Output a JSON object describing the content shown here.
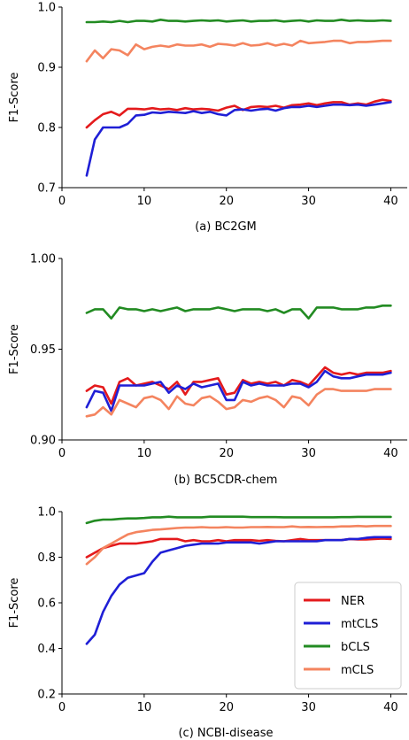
{
  "colors": {
    "NER": "#e41a1c",
    "mtCLS": "#1f1fd6",
    "bCLS": "#228b22",
    "mCLS": "#f4845f"
  },
  "legend": {
    "placement": "lower-right of panel (c)",
    "entries": [
      "NER",
      "mtCLS",
      "bCLS",
      "mCLS"
    ]
  },
  "chart_data": [
    {
      "type": "line",
      "title": "(a) BC2GM",
      "xlabel": "",
      "ylabel": "F1-Score",
      "xlim": [
        0,
        42
      ],
      "ylim": [
        0.7,
        1.0
      ],
      "xticks": [
        0,
        10,
        20,
        30,
        40
      ],
      "yticks": [
        0.7,
        0.8,
        0.9,
        1.0
      ],
      "ytick_labels": [
        "0.7",
        "0.8",
        "0.9",
        "1.0"
      ],
      "x": [
        3,
        4,
        5,
        6,
        7,
        8,
        9,
        10,
        11,
        12,
        13,
        14,
        15,
        16,
        17,
        18,
        19,
        20,
        21,
        22,
        23,
        24,
        25,
        26,
        27,
        28,
        29,
        30,
        31,
        32,
        33,
        34,
        35,
        36,
        37,
        38,
        39,
        40
      ],
      "series": [
        {
          "name": "NER",
          "values": [
            0.8,
            0.812,
            0.822,
            0.826,
            0.82,
            0.831,
            0.831,
            0.83,
            0.832,
            0.83,
            0.831,
            0.829,
            0.832,
            0.83,
            0.831,
            0.83,
            0.828,
            0.833,
            0.836,
            0.829,
            0.834,
            0.835,
            0.834,
            0.836,
            0.833,
            0.837,
            0.838,
            0.84,
            0.837,
            0.84,
            0.842,
            0.842,
            0.838,
            0.84,
            0.838,
            0.843,
            0.846,
            0.844
          ]
        },
        {
          "name": "mtCLS",
          "values": [
            0.72,
            0.78,
            0.8,
            0.8,
            0.8,
            0.806,
            0.82,
            0.821,
            0.825,
            0.824,
            0.826,
            0.825,
            0.824,
            0.827,
            0.824,
            0.826,
            0.822,
            0.82,
            0.829,
            0.83,
            0.828,
            0.83,
            0.831,
            0.828,
            0.832,
            0.834,
            0.834,
            0.836,
            0.834,
            0.836,
            0.838,
            0.838,
            0.837,
            0.838,
            0.836,
            0.838,
            0.84,
            0.842
          ]
        },
        {
          "name": "bCLS",
          "values": [
            0.975,
            0.975,
            0.976,
            0.975,
            0.977,
            0.975,
            0.977,
            0.977,
            0.976,
            0.979,
            0.977,
            0.977,
            0.976,
            0.977,
            0.978,
            0.977,
            0.978,
            0.976,
            0.977,
            0.978,
            0.976,
            0.977,
            0.977,
            0.978,
            0.976,
            0.977,
            0.978,
            0.976,
            0.978,
            0.977,
            0.977,
            0.979,
            0.977,
            0.978,
            0.977,
            0.977,
            0.978,
            0.977
          ]
        },
        {
          "name": "mCLS",
          "values": [
            0.91,
            0.928,
            0.915,
            0.93,
            0.928,
            0.92,
            0.938,
            0.93,
            0.934,
            0.936,
            0.934,
            0.938,
            0.936,
            0.936,
            0.938,
            0.934,
            0.939,
            0.938,
            0.936,
            0.94,
            0.936,
            0.937,
            0.94,
            0.936,
            0.939,
            0.936,
            0.944,
            0.94,
            0.941,
            0.942,
            0.944,
            0.944,
            0.94,
            0.942,
            0.942,
            0.943,
            0.944,
            0.944
          ]
        }
      ]
    },
    {
      "type": "line",
      "title": "(b) BC5CDR-chem",
      "xlabel": "",
      "ylabel": "F1-Score",
      "xlim": [
        0,
        42
      ],
      "ylim": [
        0.9,
        1.0
      ],
      "xticks": [
        0,
        10,
        20,
        30,
        40
      ],
      "yticks": [
        0.9,
        0.95,
        1.0
      ],
      "ytick_labels": [
        "0.90",
        "0.95",
        "1.00"
      ],
      "x": [
        3,
        4,
        5,
        6,
        7,
        8,
        9,
        10,
        11,
        12,
        13,
        14,
        15,
        16,
        17,
        18,
        19,
        20,
        21,
        22,
        23,
        24,
        25,
        26,
        27,
        28,
        29,
        30,
        31,
        32,
        33,
        34,
        35,
        36,
        37,
        38,
        39,
        40
      ],
      "series": [
        {
          "name": "NER",
          "values": [
            0.927,
            0.93,
            0.929,
            0.92,
            0.932,
            0.934,
            0.93,
            0.931,
            0.932,
            0.93,
            0.928,
            0.932,
            0.925,
            0.932,
            0.932,
            0.933,
            0.934,
            0.925,
            0.926,
            0.933,
            0.931,
            0.932,
            0.931,
            0.932,
            0.93,
            0.933,
            0.932,
            0.93,
            0.935,
            0.94,
            0.937,
            0.936,
            0.937,
            0.936,
            0.937,
            0.937,
            0.937,
            0.938
          ]
        },
        {
          "name": "mtCLS",
          "values": [
            0.918,
            0.927,
            0.926,
            0.916,
            0.93,
            0.93,
            0.93,
            0.93,
            0.931,
            0.932,
            0.926,
            0.93,
            0.928,
            0.931,
            0.929,
            0.93,
            0.931,
            0.922,
            0.922,
            0.932,
            0.93,
            0.931,
            0.93,
            0.93,
            0.93,
            0.931,
            0.931,
            0.929,
            0.932,
            0.938,
            0.935,
            0.934,
            0.934,
            0.935,
            0.936,
            0.936,
            0.936,
            0.937
          ]
        },
        {
          "name": "bCLS",
          "values": [
            0.97,
            0.972,
            0.972,
            0.967,
            0.973,
            0.972,
            0.972,
            0.971,
            0.972,
            0.971,
            0.972,
            0.973,
            0.971,
            0.972,
            0.972,
            0.972,
            0.973,
            0.972,
            0.971,
            0.972,
            0.972,
            0.972,
            0.971,
            0.972,
            0.97,
            0.972,
            0.972,
            0.967,
            0.973,
            0.973,
            0.973,
            0.972,
            0.972,
            0.972,
            0.973,
            0.973,
            0.974,
            0.974
          ]
        },
        {
          "name": "mCLS",
          "values": [
            0.913,
            0.914,
            0.918,
            0.914,
            0.922,
            0.92,
            0.918,
            0.923,
            0.924,
            0.922,
            0.917,
            0.924,
            0.92,
            0.919,
            0.923,
            0.924,
            0.921,
            0.917,
            0.918,
            0.922,
            0.921,
            0.923,
            0.924,
            0.922,
            0.918,
            0.924,
            0.923,
            0.919,
            0.925,
            0.928,
            0.928,
            0.927,
            0.927,
            0.927,
            0.927,
            0.928,
            0.928,
            0.928
          ]
        }
      ]
    },
    {
      "type": "line",
      "title": "(c) NCBI-disease",
      "xlabel": "",
      "ylabel": "F1-Score",
      "xlim": [
        0,
        42
      ],
      "ylim": [
        0.2,
        1.0
      ],
      "xticks": [
        0,
        10,
        20,
        30,
        40
      ],
      "yticks": [
        0.2,
        0.4,
        0.6,
        0.8,
        1.0
      ],
      "ytick_labels": [
        "0.2",
        "0.4",
        "0.6",
        "0.8",
        "1.0"
      ],
      "x": [
        3,
        4,
        5,
        6,
        7,
        8,
        9,
        10,
        11,
        12,
        13,
        14,
        15,
        16,
        17,
        18,
        19,
        20,
        21,
        22,
        23,
        24,
        25,
        26,
        27,
        28,
        29,
        30,
        31,
        32,
        33,
        34,
        35,
        36,
        37,
        38,
        39,
        40
      ],
      "series": [
        {
          "name": "NER",
          "values": [
            0.8,
            0.82,
            0.84,
            0.85,
            0.86,
            0.86,
            0.86,
            0.865,
            0.87,
            0.88,
            0.88,
            0.88,
            0.87,
            0.875,
            0.87,
            0.87,
            0.875,
            0.87,
            0.875,
            0.875,
            0.875,
            0.872,
            0.875,
            0.872,
            0.87,
            0.875,
            0.88,
            0.875,
            0.875,
            0.875,
            0.875,
            0.875,
            0.88,
            0.878,
            0.878,
            0.88,
            0.882,
            0.88
          ]
        },
        {
          "name": "mtCLS",
          "values": [
            0.42,
            0.46,
            0.56,
            0.63,
            0.68,
            0.71,
            0.72,
            0.73,
            0.78,
            0.82,
            0.83,
            0.84,
            0.85,
            0.855,
            0.86,
            0.86,
            0.86,
            0.865,
            0.865,
            0.865,
            0.865,
            0.86,
            0.865,
            0.87,
            0.87,
            0.87,
            0.87,
            0.87,
            0.87,
            0.875,
            0.875,
            0.875,
            0.88,
            0.88,
            0.885,
            0.888,
            0.888,
            0.888
          ]
        },
        {
          "name": "bCLS",
          "values": [
            0.95,
            0.96,
            0.965,
            0.965,
            0.968,
            0.97,
            0.97,
            0.972,
            0.975,
            0.975,
            0.978,
            0.975,
            0.975,
            0.975,
            0.975,
            0.978,
            0.978,
            0.978,
            0.978,
            0.978,
            0.976,
            0.976,
            0.976,
            0.976,
            0.975,
            0.975,
            0.975,
            0.975,
            0.975,
            0.975,
            0.975,
            0.976,
            0.976,
            0.977,
            0.977,
            0.977,
            0.977,
            0.977
          ]
        },
        {
          "name": "mCLS",
          "values": [
            0.77,
            0.8,
            0.84,
            0.86,
            0.88,
            0.9,
            0.91,
            0.915,
            0.92,
            0.922,
            0.925,
            0.928,
            0.93,
            0.93,
            0.932,
            0.93,
            0.93,
            0.932,
            0.93,
            0.93,
            0.932,
            0.932,
            0.933,
            0.932,
            0.932,
            0.935,
            0.932,
            0.933,
            0.932,
            0.933,
            0.933,
            0.935,
            0.935,
            0.937,
            0.935,
            0.937,
            0.937,
            0.937
          ]
        }
      ]
    }
  ]
}
